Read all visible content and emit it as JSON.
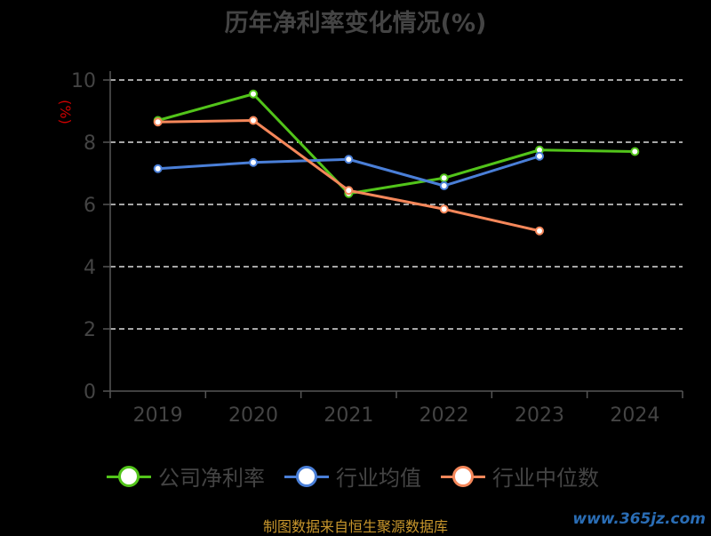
{
  "title": "历年净利率变化情况(%)",
  "footer": "制图数据来自恒生聚源数据库",
  "watermark": "www.365jz.com",
  "colors": {
    "axis": "#555555",
    "grid": "#dddddd",
    "tick_text": "#444444",
    "unit_text": "#cc0000"
  },
  "chart_data": {
    "type": "line",
    "title": "历年净利率变化情况(%)",
    "ylabel": "(%)",
    "xlabel": "",
    "categories": [
      "2019",
      "2020",
      "2021",
      "2022",
      "2023",
      "2024"
    ],
    "ylim": [
      0,
      10
    ],
    "yticks": [
      0,
      2,
      4,
      6,
      8,
      10
    ],
    "grid": "horizontal dashed",
    "legend_position": "bottom",
    "series": [
      {
        "name": "公司净利率",
        "color": "#52c41a",
        "values": [
          8.7,
          9.55,
          6.35,
          6.85,
          7.75,
          7.7
        ]
      },
      {
        "name": "行业均值",
        "color": "#4a7fd8",
        "values": [
          7.15,
          7.35,
          7.45,
          6.6,
          7.55,
          null
        ]
      },
      {
        "name": "行业中位数",
        "color": "#f5875a",
        "values": [
          8.65,
          8.7,
          6.45,
          5.85,
          5.15,
          null
        ]
      }
    ]
  }
}
